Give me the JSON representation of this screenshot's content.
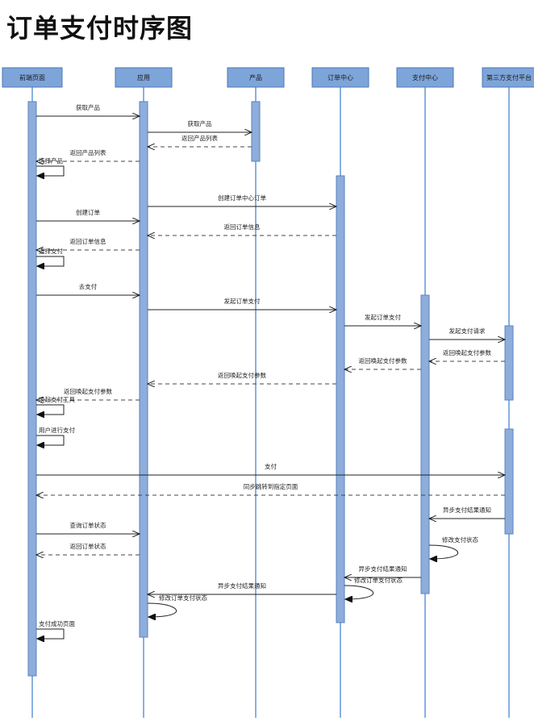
{
  "title": "订单支付时序图",
  "colors": {
    "actor_fill": "#7ea5d9",
    "lifeline": "#3b7bd0",
    "activation_fill": "#8eaddb"
  },
  "actors": [
    {
      "id": "frontend",
      "label": "前端页面"
    },
    {
      "id": "app",
      "label": "应用"
    },
    {
      "id": "product",
      "label": "产品"
    },
    {
      "id": "order",
      "label": "订单中心"
    },
    {
      "id": "payment",
      "label": "支付中心"
    },
    {
      "id": "thirdparty",
      "label": "第三方支付平台"
    }
  ],
  "messages": [
    {
      "from": "frontend",
      "to": "app",
      "label": "获取产品",
      "style": "solid"
    },
    {
      "from": "app",
      "to": "product",
      "label": "获取产品",
      "style": "solid"
    },
    {
      "from": "product",
      "to": "app",
      "label": "返回产品列表",
      "style": "dashed"
    },
    {
      "from": "app",
      "to": "frontend",
      "label": "返回产品列表",
      "style": "dashed"
    },
    {
      "from": "frontend",
      "to": "frontend",
      "label": "选择产品",
      "style": "self"
    },
    {
      "from": "app",
      "to": "order",
      "label": "创建订单中心订单",
      "style": "solid"
    },
    {
      "from": "frontend",
      "to": "app",
      "label": "创建订单",
      "style": "solid"
    },
    {
      "from": "order",
      "to": "app",
      "label": "返回订单信息",
      "style": "dashed"
    },
    {
      "from": "app",
      "to": "frontend",
      "label": "返回订单信息",
      "style": "dashed"
    },
    {
      "from": "frontend",
      "to": "frontend",
      "label": "选择支付",
      "style": "self"
    },
    {
      "from": "frontend",
      "to": "app",
      "label": "去支付",
      "style": "solid"
    },
    {
      "from": "app",
      "to": "order",
      "label": "发起订单支付",
      "style": "solid"
    },
    {
      "from": "order",
      "to": "payment",
      "label": "发起订单支付",
      "style": "solid"
    },
    {
      "from": "payment",
      "to": "thirdparty",
      "label": "发起支付请求",
      "style": "solid"
    },
    {
      "from": "thirdparty",
      "to": "payment",
      "label": "返回唤起支付参数",
      "style": "dashed"
    },
    {
      "from": "payment",
      "to": "order",
      "label": "返回唤起支付参数",
      "style": "dashed"
    },
    {
      "from": "order",
      "to": "app",
      "label": "返回唤起支付参数",
      "style": "dashed"
    },
    {
      "from": "app",
      "to": "frontend",
      "label": "返回唤起支付参数",
      "style": "dashed"
    },
    {
      "from": "frontend",
      "to": "frontend",
      "label": "唤起支付工具",
      "style": "self"
    },
    {
      "from": "frontend",
      "to": "frontend",
      "label": "用户进行支付",
      "style": "self"
    },
    {
      "from": "frontend",
      "to": "thirdparty",
      "label": "支付",
      "style": "solid"
    },
    {
      "from": "thirdparty",
      "to": "frontend",
      "label": "同步跳转到指定页面",
      "style": "dashed"
    },
    {
      "from": "thirdparty",
      "to": "payment",
      "label": "异步支付结果通知",
      "style": "solid"
    },
    {
      "from": "frontend",
      "to": "app",
      "label": "查询订单状态",
      "style": "solid"
    },
    {
      "from": "payment",
      "to": "payment",
      "label": "修改支付状态",
      "style": "self"
    },
    {
      "from": "app",
      "to": "frontend",
      "label": "返回订单状态",
      "style": "dashed"
    },
    {
      "from": "payment",
      "to": "order",
      "label": "异步支付结果通知",
      "style": "solid"
    },
    {
      "from": "order",
      "to": "order",
      "label": "修改订单支付状态",
      "style": "self"
    },
    {
      "from": "order",
      "to": "app",
      "label": "异步支付结果通知",
      "style": "solid"
    },
    {
      "from": "app",
      "to": "app",
      "label": "修改订单支付状态",
      "style": "self"
    },
    {
      "from": "frontend",
      "to": "frontend",
      "label": "支付成功页面",
      "style": "self"
    }
  ]
}
